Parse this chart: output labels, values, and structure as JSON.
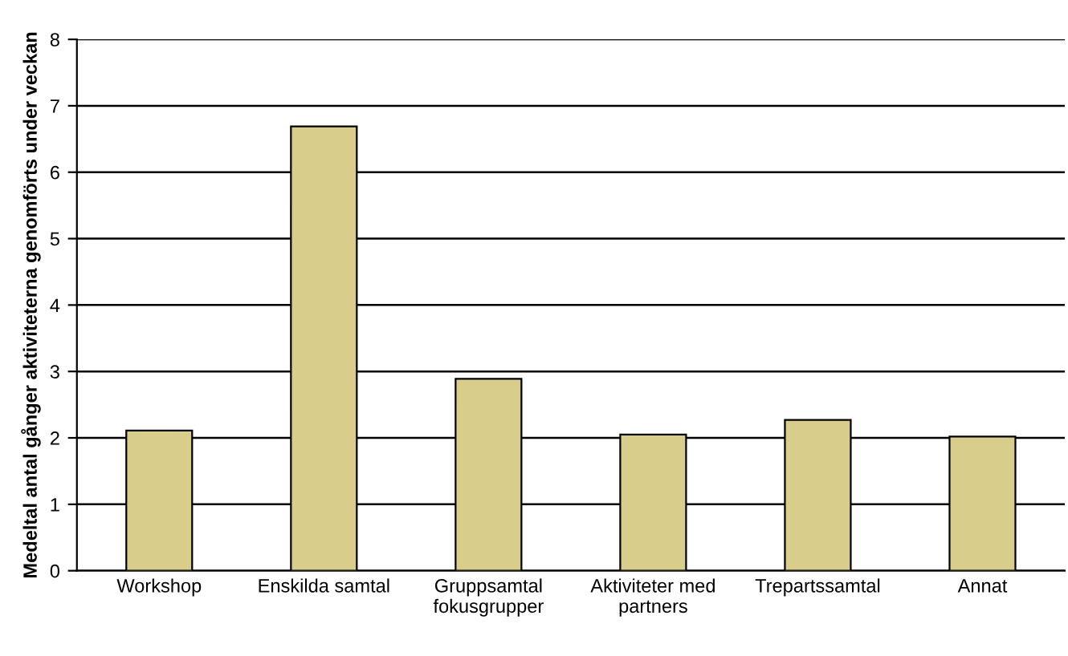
{
  "chart_data": {
    "type": "bar",
    "categories": [
      "Workshop",
      "Enskilda samtal",
      "Gruppsamtal\nfokusgrupper",
      "Aktiviteter med\npartners",
      "Trepartssamtal",
      "Annat"
    ],
    "values": [
      2.11,
      6.69,
      2.89,
      2.05,
      2.27,
      2.02
    ],
    "color": "#d8cd8a",
    "ylabel": "Medeltal antal gånger aktiviteterna genomförts under veckan",
    "ylim": [
      0,
      8
    ],
    "yticks": [
      0,
      1,
      2,
      3,
      4,
      5,
      6,
      7,
      8
    ],
    "grid": "y"
  }
}
